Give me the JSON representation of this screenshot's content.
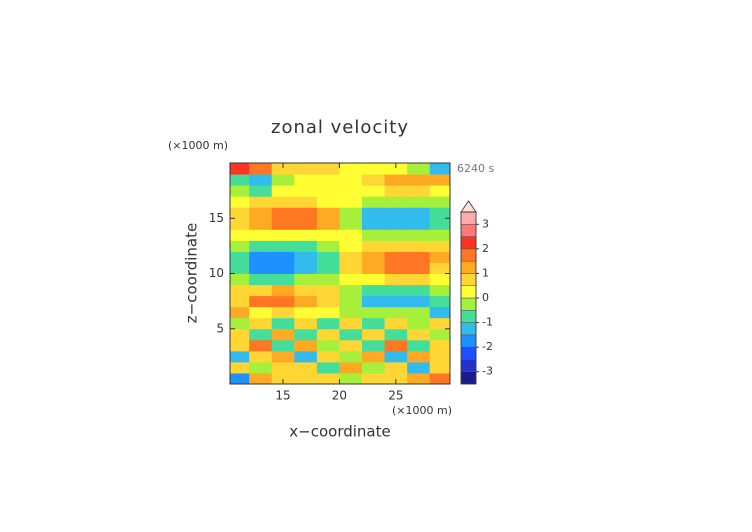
{
  "chart_data": {
    "type": "contourf",
    "title": "zonal velocity",
    "x_unit": "(×1000 m)",
    "y_unit": "(×1000 m)",
    "time_label": "6240 s",
    "x_label": "x−coordinate",
    "y_label": "z−coordinate",
    "xlim": [
      10.3,
      29.8
    ],
    "ylim": [
      0,
      20
    ],
    "xticks": [
      15,
      20,
      25
    ],
    "yticks": [
      5,
      10,
      15
    ],
    "x": [
      11,
      13,
      15,
      17,
      19,
      21,
      23,
      25,
      27,
      29
    ],
    "y": [
      0.5,
      1.5,
      2.5,
      3.5,
      4.5,
      5.5,
      6.5,
      7.5,
      8.5,
      9.5,
      10.5,
      11.5,
      12.5,
      13.5,
      14.5,
      15.5,
      16.5,
      17.5,
      18.5,
      19.5
    ],
    "z": [
      [
        -2,
        1,
        0.5,
        0.5,
        0.8,
        -0.5,
        0.5,
        0.5,
        1,
        1.5
      ],
      [
        0.5,
        -0.5,
        0.8,
        0.8,
        -1,
        1,
        -0.5,
        0.5,
        -1.5,
        0.8
      ],
      [
        -1.5,
        0.5,
        1,
        -1.5,
        0.5,
        -0.5,
        1,
        -1.5,
        1,
        0.5
      ],
      [
        0.5,
        1.5,
        -1,
        1.2,
        -0.5,
        0.5,
        -1,
        1.5,
        -1,
        0.5
      ],
      [
        0.5,
        -0.8,
        1,
        -0.8,
        0.6,
        -0.6,
        0.8,
        -0.8,
        0.6,
        -0.5
      ],
      [
        -0.5,
        0.5,
        -0.6,
        0.8,
        -0.8,
        0.8,
        -0.6,
        0.6,
        -0.5,
        0.5
      ],
      [
        1.2,
        0.3,
        0.5,
        0.4,
        0.3,
        -0.3,
        -0.5,
        -0.5,
        -0.3,
        -1.2
      ],
      [
        0.8,
        1.5,
        1.5,
        1.2,
        0.6,
        -0.5,
        -1.2,
        -1.5,
        -1.2,
        -0.8
      ],
      [
        0.5,
        0.8,
        1,
        0.8,
        0.5,
        -0.3,
        -0.6,
        -0.8,
        -0.8,
        -0.5
      ],
      [
        -0.3,
        -0.6,
        -0.6,
        -0.5,
        -0.3,
        0.2,
        0.4,
        0.5,
        0.5,
        0.3
      ],
      [
        -0.8,
        -1.8,
        -2,
        -1.5,
        -0.8,
        0.5,
        1.2,
        1.5,
        1.5,
        0.8
      ],
      [
        -1,
        -1.8,
        -2,
        -1.5,
        -0.8,
        0.5,
        1.2,
        1.5,
        1.5,
        1
      ],
      [
        -0.5,
        -0.8,
        -0.8,
        -0.6,
        -0.3,
        0.3,
        0.6,
        0.8,
        0.8,
        0.5
      ],
      [
        0.2,
        0.3,
        0.4,
        0.3,
        0.2,
        0,
        -0.3,
        -0.4,
        -0.3,
        -0.2
      ],
      [
        0.8,
        1.2,
        1.5,
        1.5,
        1,
        -0.5,
        -1.2,
        -1.5,
        -1.2,
        -0.8
      ],
      [
        0.8,
        1.2,
        1.5,
        1.5,
        1,
        -0.5,
        -1.2,
        -1.5,
        -1.2,
        -0.8
      ],
      [
        0.2,
        0.5,
        0.5,
        0.5,
        0.2,
        0,
        -0.3,
        -0.5,
        -0.5,
        -0.2
      ],
      [
        -0.5,
        -0.8,
        0,
        0,
        0,
        0,
        0,
        0.5,
        0.5,
        0
      ],
      [
        -1,
        -1.5,
        -0.5,
        0,
        0,
        0,
        0.5,
        1,
        1,
        1
      ],
      [
        2,
        1.5,
        0.5,
        0.5,
        0.5,
        0,
        0,
        0,
        -0.5,
        -1.5
      ]
    ],
    "levels": [
      -3.5,
      -3,
      -2.5,
      -2,
      -1.5,
      -1,
      -0.5,
      0,
      0.5,
      1,
      1.5,
      2,
      2.5,
      3,
      3.5
    ],
    "colors": [
      "#1a1a8c",
      "#2233cc",
      "#1e50ff",
      "#1e90ff",
      "#33bbee",
      "#44dd99",
      "#a6f03c",
      "#ffff33",
      "#ffd633",
      "#ffaa22",
      "#ff7722",
      "#ff3322",
      "#ff7777",
      "#ffaaaa"
    ],
    "over_color": "#ffdede",
    "colorbar_ticks": [
      -3,
      -2,
      -1,
      0,
      1,
      2,
      3
    ]
  }
}
